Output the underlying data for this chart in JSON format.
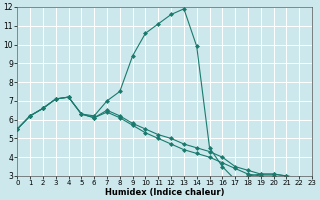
{
  "xlabel": "Humidex (Indice chaleur)",
  "xlim": [
    0,
    23
  ],
  "ylim": [
    3,
    12
  ],
  "xticks": [
    0,
    1,
    2,
    3,
    4,
    5,
    6,
    7,
    8,
    9,
    10,
    11,
    12,
    13,
    14,
    15,
    16,
    17,
    18,
    19,
    20,
    21,
    22,
    23
  ],
  "yticks": [
    3,
    4,
    5,
    6,
    7,
    8,
    9,
    10,
    11,
    12
  ],
  "bg_color": "#cce8ec",
  "line_color": "#1a7a6e",
  "grid_color": "#ffffff",
  "line1_x": [
    0,
    1,
    2,
    3,
    4,
    5,
    6,
    7,
    8,
    9,
    10,
    11,
    12,
    13,
    14,
    15,
    16,
    17,
    18,
    19,
    20,
    21,
    22,
    23
  ],
  "line1_y": [
    5.5,
    6.2,
    6.6,
    7.1,
    7.2,
    6.3,
    6.2,
    7.0,
    7.5,
    9.4,
    10.6,
    11.1,
    11.6,
    11.9,
    9.9,
    4.5,
    3.5,
    2.8,
    3.0,
    3.1,
    3.1,
    3.0,
    2.9,
    2.9
  ],
  "line2_x": [
    0,
    1,
    2,
    3,
    4,
    5,
    6,
    7,
    8,
    9,
    10,
    11,
    12,
    13,
    14,
    15,
    16,
    17,
    18,
    19,
    20,
    21,
    22,
    23
  ],
  "line2_y": [
    5.5,
    6.2,
    6.6,
    7.1,
    7.2,
    6.3,
    6.1,
    6.5,
    6.2,
    5.8,
    5.5,
    5.2,
    5.0,
    4.7,
    4.5,
    4.3,
    4.0,
    3.5,
    3.3,
    3.1,
    3.1,
    3.0,
    2.9,
    2.9
  ],
  "line3_x": [
    0,
    1,
    2,
    3,
    4,
    5,
    6,
    7,
    8,
    9,
    10,
    11,
    12,
    13,
    14,
    15,
    16,
    17,
    18,
    19,
    20,
    21,
    22,
    23
  ],
  "line3_y": [
    5.5,
    6.2,
    6.6,
    7.1,
    7.2,
    6.3,
    6.1,
    6.4,
    6.1,
    5.7,
    5.3,
    5.0,
    4.7,
    4.4,
    4.2,
    4.0,
    3.7,
    3.4,
    3.1,
    3.0,
    3.0,
    2.9,
    2.9,
    2.9
  ]
}
